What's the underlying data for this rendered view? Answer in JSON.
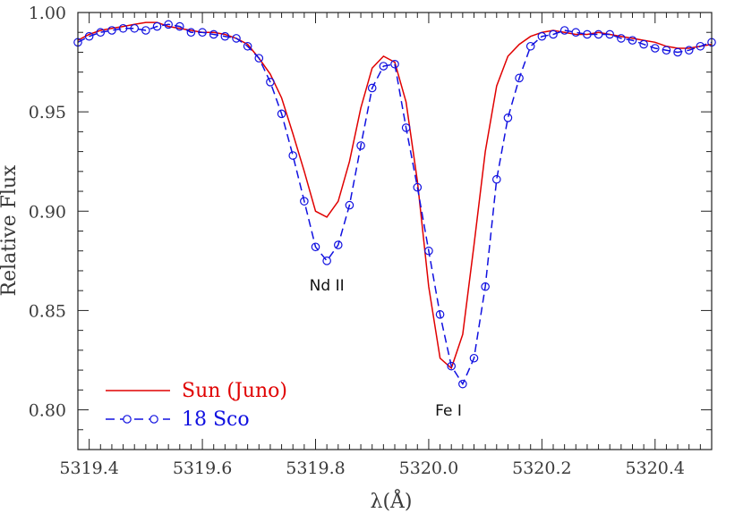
{
  "chart_data": {
    "type": "line",
    "title": "",
    "xlabel": "λ(Å)",
    "ylabel": "Relative Flux",
    "xlim": [
      5319.38,
      5320.5
    ],
    "ylim": [
      0.78,
      1.0
    ],
    "x_ticks": [
      "5319.4",
      "5319.6",
      "5319.8",
      "5320.0",
      "5320.2",
      "5320.4"
    ],
    "x_tick_values": [
      5319.4,
      5319.6,
      5319.8,
      5320.0,
      5320.2,
      5320.4
    ],
    "y_ticks": [
      "0.80",
      "0.85",
      "0.90",
      "0.95",
      "1.00"
    ],
    "y_tick_values": [
      0.8,
      0.85,
      0.9,
      0.95,
      1.0
    ],
    "legend_position": "bottom-left",
    "annotations": [
      {
        "text": "Nd II",
        "x": 5319.82,
        "y": 0.86
      },
      {
        "text": "Fe I",
        "x": 5320.035,
        "y": 0.797
      }
    ],
    "series": [
      {
        "name": "Sun (Juno)",
        "color": "#e00000",
        "style": "solid",
        "marker": "none",
        "x": [
          5319.38,
          5319.4,
          5319.42,
          5319.44,
          5319.46,
          5319.48,
          5319.5,
          5319.52,
          5319.54,
          5319.56,
          5319.58,
          5319.6,
          5319.62,
          5319.64,
          5319.66,
          5319.68,
          5319.7,
          5319.72,
          5319.74,
          5319.76,
          5319.78,
          5319.8,
          5319.82,
          5319.84,
          5319.86,
          5319.88,
          5319.9,
          5319.92,
          5319.94,
          5319.96,
          5319.98,
          5320.0,
          5320.02,
          5320.04,
          5320.06,
          5320.08,
          5320.1,
          5320.12,
          5320.14,
          5320.16,
          5320.18,
          5320.2,
          5320.22,
          5320.24,
          5320.26,
          5320.28,
          5320.3,
          5320.32,
          5320.34,
          5320.36,
          5320.38,
          5320.4,
          5320.42,
          5320.44,
          5320.46,
          5320.48,
          5320.5
        ],
        "y": [
          0.986,
          0.989,
          0.991,
          0.992,
          0.993,
          0.994,
          0.995,
          0.995,
          0.993,
          0.992,
          0.991,
          0.99,
          0.99,
          0.989,
          0.987,
          0.984,
          0.977,
          0.969,
          0.957,
          0.939,
          0.92,
          0.9,
          0.897,
          0.905,
          0.925,
          0.952,
          0.972,
          0.978,
          0.975,
          0.955,
          0.915,
          0.862,
          0.826,
          0.821,
          0.838,
          0.883,
          0.93,
          0.963,
          0.978,
          0.984,
          0.988,
          0.99,
          0.991,
          0.99,
          0.989,
          0.989,
          0.99,
          0.989,
          0.988,
          0.987,
          0.986,
          0.985,
          0.983,
          0.982,
          0.982,
          0.983,
          0.984
        ]
      },
      {
        "name": "18 Sco",
        "color": "#1010e0",
        "style": "dashed",
        "marker": "circle",
        "x": [
          5319.38,
          5319.4,
          5319.42,
          5319.44,
          5319.46,
          5319.48,
          5319.5,
          5319.52,
          5319.54,
          5319.56,
          5319.58,
          5319.6,
          5319.62,
          5319.64,
          5319.66,
          5319.68,
          5319.7,
          5319.72,
          5319.74,
          5319.76,
          5319.78,
          5319.8,
          5319.82,
          5319.84,
          5319.86,
          5319.88,
          5319.9,
          5319.92,
          5319.94,
          5319.96,
          5319.98,
          5320.0,
          5320.02,
          5320.04,
          5320.06,
          5320.08,
          5320.1,
          5320.12,
          5320.14,
          5320.16,
          5320.18,
          5320.2,
          5320.22,
          5320.24,
          5320.26,
          5320.28,
          5320.3,
          5320.32,
          5320.34,
          5320.36,
          5320.38,
          5320.4,
          5320.42,
          5320.44,
          5320.46,
          5320.48,
          5320.5
        ],
        "y": [
          0.985,
          0.988,
          0.99,
          0.991,
          0.992,
          0.992,
          0.991,
          0.993,
          0.994,
          0.993,
          0.99,
          0.99,
          0.989,
          0.988,
          0.987,
          0.983,
          0.977,
          0.965,
          0.949,
          0.928,
          0.905,
          0.882,
          0.875,
          0.883,
          0.903,
          0.933,
          0.962,
          0.973,
          0.974,
          0.942,
          0.912,
          0.88,
          0.848,
          0.822,
          0.813,
          0.826,
          0.862,
          0.916,
          0.947,
          0.967,
          0.983,
          0.988,
          0.989,
          0.991,
          0.99,
          0.989,
          0.989,
          0.989,
          0.987,
          0.986,
          0.984,
          0.982,
          0.981,
          0.98,
          0.981,
          0.983,
          0.985
        ]
      }
    ]
  }
}
